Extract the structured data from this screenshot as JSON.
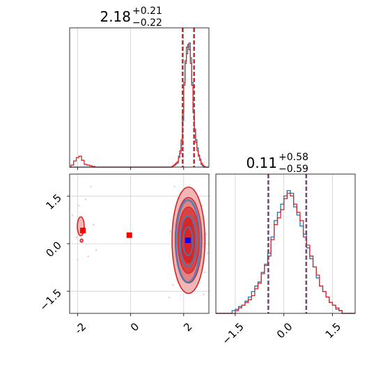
{
  "chart_data": [
    {
      "type": "histogram",
      "panel": "p0",
      "title": {
        "main": "2.18",
        "sup": "+0.21",
        "sub": "−0.22"
      },
      "xlim": [
        -2.3,
        2.95
      ],
      "x_ticks": [
        -2,
        0,
        2
      ],
      "grid": true,
      "quantile_lines": [
        1.96,
        2.39
      ],
      "series": [
        {
          "color": "#1f77b4",
          "points": [
            [
              -2.3,
              0.0
            ],
            [
              -2.1,
              0.0
            ],
            [
              -1.8,
              0.0
            ],
            [
              -1.5,
              0.0
            ],
            [
              1.5,
              0.0
            ],
            [
              1.55,
              0.004
            ],
            [
              1.6,
              0.01
            ],
            [
              1.65,
              0.015
            ],
            [
              1.7,
              0.025
            ],
            [
              1.75,
              0.03
            ],
            [
              1.8,
              0.08
            ],
            [
              1.85,
              0.1
            ],
            [
              1.9,
              0.16
            ],
            [
              1.95,
              0.34
            ],
            [
              2.0,
              0.6
            ],
            [
              2.05,
              0.76
            ],
            [
              2.1,
              0.83
            ],
            [
              2.15,
              0.88
            ],
            [
              2.2,
              0.91
            ],
            [
              2.25,
              0.8
            ],
            [
              2.3,
              0.62
            ],
            [
              2.35,
              0.4
            ],
            [
              2.4,
              0.28
            ],
            [
              2.45,
              0.2
            ],
            [
              2.5,
              0.14
            ],
            [
              2.55,
              0.09
            ],
            [
              2.6,
              0.06
            ],
            [
              2.65,
              0.02
            ],
            [
              2.7,
              0.01
            ],
            [
              2.75,
              0.0
            ],
            [
              2.95,
              0.0
            ]
          ]
        },
        {
          "color": "#d62728",
          "points": [
            [
              -2.3,
              0.0
            ],
            [
              -2.25,
              0.015
            ],
            [
              -2.15,
              0.045
            ],
            [
              -2.05,
              0.07
            ],
            [
              -1.95,
              0.08
            ],
            [
              -1.85,
              0.05
            ],
            [
              -1.75,
              0.02
            ],
            [
              -1.65,
              0.015
            ],
            [
              -1.55,
              0.01
            ],
            [
              -1.45,
              0.005
            ],
            [
              -1.35,
              0.0
            ],
            [
              1.5,
              0.0
            ],
            [
              1.55,
              0.005
            ],
            [
              1.6,
              0.012
            ],
            [
              1.65,
              0.02
            ],
            [
              1.7,
              0.03
            ],
            [
              1.75,
              0.04
            ],
            [
              1.8,
              0.07
            ],
            [
              1.85,
              0.12
            ],
            [
              1.9,
              0.2
            ],
            [
              1.95,
              0.4
            ],
            [
              2.0,
              0.62
            ],
            [
              2.05,
              0.78
            ],
            [
              2.1,
              0.88
            ],
            [
              2.15,
              0.9
            ],
            [
              2.2,
              0.86
            ],
            [
              2.25,
              0.76
            ],
            [
              2.3,
              0.6
            ],
            [
              2.35,
              0.42
            ],
            [
              2.4,
              0.27
            ],
            [
              2.45,
              0.18
            ],
            [
              2.5,
              0.12
            ],
            [
              2.55,
              0.08
            ],
            [
              2.6,
              0.05
            ],
            [
              2.65,
              0.03
            ],
            [
              2.7,
              0.015
            ],
            [
              2.75,
              0.005
            ],
            [
              2.8,
              0.0
            ],
            [
              2.95,
              0.0
            ]
          ]
        }
      ]
    },
    {
      "type": "histogram",
      "panel": "p1",
      "title": {
        "main": "0.11",
        "sup": "+0.58",
        "sub": "−0.59"
      },
      "xlim": [
        -2.1,
        2.2
      ],
      "x_ticks": [
        -1.5,
        0.0,
        1.5
      ],
      "x_tick_labels": [
        "−1.5",
        "0.0",
        "1.5"
      ],
      "grid": true,
      "quantile_lines": [
        -0.48,
        0.69
      ],
      "series": [
        {
          "color": "#1f77b4",
          "points": [
            [
              -2.1,
              0.0
            ],
            [
              -1.7,
              0.0
            ],
            [
              -1.6,
              0.02
            ],
            [
              -1.5,
              0.03
            ],
            [
              -1.4,
              0.05
            ],
            [
              -1.3,
              0.06
            ],
            [
              -1.2,
              0.09
            ],
            [
              -1.1,
              0.12
            ],
            [
              -1.0,
              0.16
            ],
            [
              -0.9,
              0.2
            ],
            [
              -0.8,
              0.23
            ],
            [
              -0.7,
              0.3
            ],
            [
              -0.6,
              0.36
            ],
            [
              -0.5,
              0.44
            ],
            [
              -0.4,
              0.56
            ],
            [
              -0.3,
              0.68
            ],
            [
              -0.2,
              0.74
            ],
            [
              -0.1,
              0.8
            ],
            [
              0.0,
              0.86
            ],
            [
              0.1,
              0.9
            ],
            [
              0.2,
              0.88
            ],
            [
              0.3,
              0.78
            ],
            [
              0.4,
              0.72
            ],
            [
              0.5,
              0.64
            ],
            [
              0.6,
              0.58
            ],
            [
              0.7,
              0.48
            ],
            [
              0.8,
              0.4
            ],
            [
              0.9,
              0.34
            ],
            [
              1.0,
              0.26
            ],
            [
              1.1,
              0.2
            ],
            [
              1.2,
              0.16
            ],
            [
              1.3,
              0.12
            ],
            [
              1.4,
              0.08
            ],
            [
              1.5,
              0.06
            ],
            [
              1.6,
              0.03
            ],
            [
              1.7,
              0.02
            ],
            [
              1.8,
              0.0
            ],
            [
              2.2,
              0.0
            ]
          ]
        },
        {
          "color": "#d62728",
          "points": [
            [
              -2.1,
              0.0
            ],
            [
              -1.6,
              0.0
            ],
            [
              -1.5,
              0.02
            ],
            [
              -1.4,
              0.04
            ],
            [
              -1.3,
              0.06
            ],
            [
              -1.2,
              0.08
            ],
            [
              -1.1,
              0.1
            ],
            [
              -1.0,
              0.13
            ],
            [
              -0.9,
              0.18
            ],
            [
              -0.8,
              0.22
            ],
            [
              -0.7,
              0.29
            ],
            [
              -0.6,
              0.35
            ],
            [
              -0.5,
              0.42
            ],
            [
              -0.4,
              0.54
            ],
            [
              -0.3,
              0.65
            ],
            [
              -0.2,
              0.7
            ],
            [
              -0.1,
              0.76
            ],
            [
              0.0,
              0.84
            ],
            [
              0.1,
              0.88
            ],
            [
              0.2,
              0.86
            ],
            [
              0.3,
              0.8
            ],
            [
              0.4,
              0.74
            ],
            [
              0.5,
              0.68
            ],
            [
              0.6,
              0.56
            ],
            [
              0.7,
              0.5
            ],
            [
              0.8,
              0.42
            ],
            [
              0.9,
              0.34
            ],
            [
              1.0,
              0.28
            ],
            [
              1.1,
              0.2
            ],
            [
              1.2,
              0.16
            ],
            [
              1.3,
              0.12
            ],
            [
              1.4,
              0.08
            ],
            [
              1.5,
              0.06
            ],
            [
              1.6,
              0.04
            ],
            [
              1.7,
              0.02
            ],
            [
              1.8,
              0.0
            ],
            [
              2.2,
              0.0
            ]
          ]
        }
      ]
    },
    {
      "type": "contour",
      "panel": "p2",
      "xlim": [
        -2.3,
        2.95
      ],
      "ylim": [
        -2.2,
        2.2
      ],
      "x_ticks": [
        -2,
        0,
        2
      ],
      "y_ticks": [
        -1.5,
        0.0,
        1.5
      ],
      "y_tick_labels": [
        "−1.5",
        "0.0",
        "1.5"
      ],
      "grid": true,
      "red_fill_colors": [
        "#f2b6b6",
        "#e58282",
        "#d84444",
        "#d62728"
      ],
      "red_levels": [
        {
          "cx": 2.18,
          "cy": 0.11,
          "rx": 0.62,
          "ry": 1.68,
          "width": 1.6
        },
        {
          "cx": 2.18,
          "cy": 0.11,
          "rx": 0.5,
          "ry": 1.35,
          "width": 1.4
        },
        {
          "cx": 2.18,
          "cy": 0.11,
          "rx": 0.4,
          "ry": 1.05,
          "width": 1.4
        },
        {
          "cx": 2.18,
          "cy": 0.11,
          "rx": 0.28,
          "ry": 0.72,
          "width": 1.2
        }
      ],
      "blue_levels": [
        {
          "cx": 2.16,
          "cy": 0.08,
          "rx": 0.45,
          "ry": 1.3,
          "width": 2.6
        },
        {
          "cx": 2.16,
          "cy": 0.08,
          "rx": 0.3,
          "ry": 0.8,
          "width": 2.2
        },
        {
          "cx": 2.16,
          "cy": 0.08,
          "rx": 0.18,
          "ry": 0.45,
          "width": 1.8
        }
      ],
      "outlier_contours": [
        {
          "cx": -1.88,
          "cy": 0.55,
          "rx": 0.13,
          "ry": 0.3
        },
        {
          "cx": -1.85,
          "cy": 0.1,
          "rx": 0.05,
          "ry": 0.05
        }
      ],
      "red_markers": [
        [
          -1.8,
          0.42
        ],
        [
          -0.05,
          0.27
        ]
      ],
      "blue_marker": [
        2.16,
        0.11
      ],
      "sparse_points": [
        [
          -1.95,
          1.2
        ],
        [
          -2.2,
          0.9
        ],
        [
          -1.4,
          0.6
        ],
        [
          -1.6,
          -0.4
        ],
        [
          -2.0,
          -0.5
        ],
        [
          -1.7,
          1.4
        ],
        [
          -1.5,
          1.8
        ],
        [
          1.65,
          1.8
        ],
        [
          1.6,
          -1.3
        ],
        [
          2.85,
          0.3
        ],
        [
          2.8,
          -0.9
        ],
        [
          2.7,
          1.2
        ],
        [
          1.5,
          0.4
        ],
        [
          2.9,
          -0.3
        ],
        [
          1.45,
          -1.7
        ],
        [
          -2.05,
          0.2
        ],
        [
          -1.3,
          -0.2
        ],
        [
          2.75,
          -1.6
        ]
      ]
    }
  ]
}
